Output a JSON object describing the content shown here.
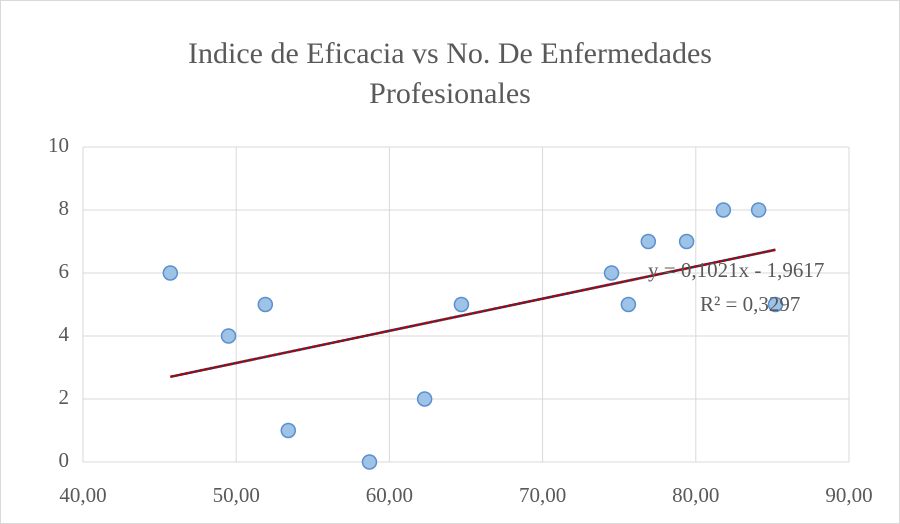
{
  "chart_data": {
    "type": "scatter",
    "title": "Indice de Eficacia vs No. De Enfermedades Profesionales",
    "x": [
      45.7,
      49.5,
      51.9,
      53.4,
      58.7,
      62.3,
      64.7,
      74.5,
      75.6,
      76.9,
      79.4,
      81.8,
      84.1,
      85.2
    ],
    "values": [
      6,
      4,
      5,
      1,
      0,
      2,
      5,
      6,
      5,
      7,
      7,
      8,
      8,
      5
    ],
    "color": "#9dc3e6",
    "xlim": [
      40,
      90
    ],
    "xticks": [
      {
        "value": 40,
        "label": "40,00"
      },
      {
        "value": 50,
        "label": "50,00"
      },
      {
        "value": 60,
        "label": "60,00"
      },
      {
        "value": 70,
        "label": "70,00"
      },
      {
        "value": 80,
        "label": "80,00"
      },
      {
        "value": 90,
        "label": "90,00"
      }
    ],
    "ylim": [
      0,
      10
    ],
    "yticks": [
      0,
      2,
      4,
      6,
      8,
      10
    ],
    "grid": true,
    "trendline": {
      "slope": 0.1021,
      "intercept": -1.9617,
      "equation": "y = 0,1021x - 1,9617",
      "r2": "R² = 0,3297",
      "color": "#c00000"
    }
  }
}
